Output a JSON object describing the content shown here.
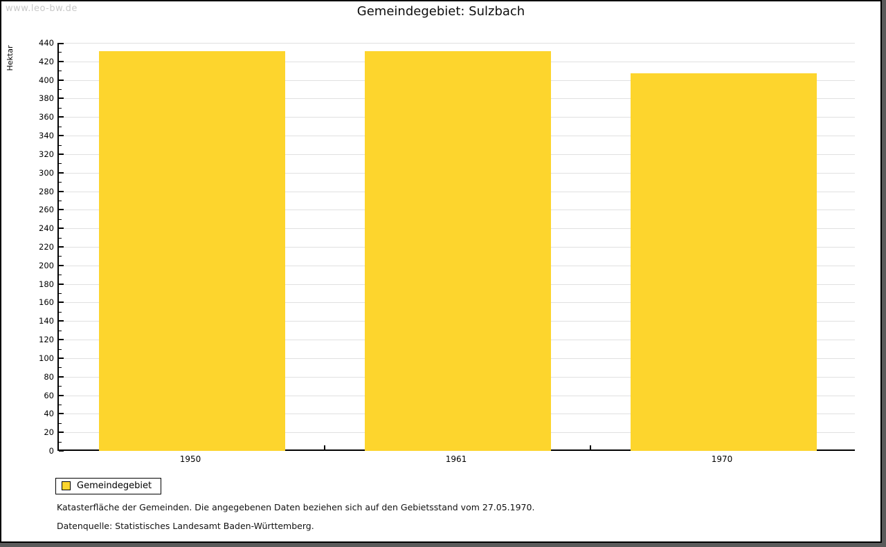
{
  "watermark": "www.leo-bw.de",
  "chart_data": {
    "type": "bar",
    "title": "Gemeindegebiet: Sulzbach",
    "ylabel": "Hektar",
    "xlabel": "",
    "categories": [
      "1950",
      "1961",
      "1970"
    ],
    "series": [
      {
        "name": "Gemeindegebiet",
        "values": [
          431,
          431,
          407
        ]
      }
    ],
    "ylim": [
      0,
      440
    ],
    "ytick_step": 20,
    "minor_tick_step": 10,
    "grid": true,
    "bar_color": "#fdd52d",
    "legend_position": "bottom-left"
  },
  "legend": {
    "swatch_color": "#fdd52d"
  },
  "footer": {
    "note": "Katasterfläche der Gemeinden. Die angegebenen Daten beziehen sich auf den Gebietsstand vom 27.05.1970.",
    "source": "Datenquelle: Statistisches Landesamt Baden-Württemberg."
  },
  "colors": {
    "bar": "#fdd52d",
    "grid": "#e0e0e0",
    "axis": "#000000",
    "watermark": "#c8c8c8",
    "shadow": "#5a5a5a",
    "background": "#ffffff"
  }
}
